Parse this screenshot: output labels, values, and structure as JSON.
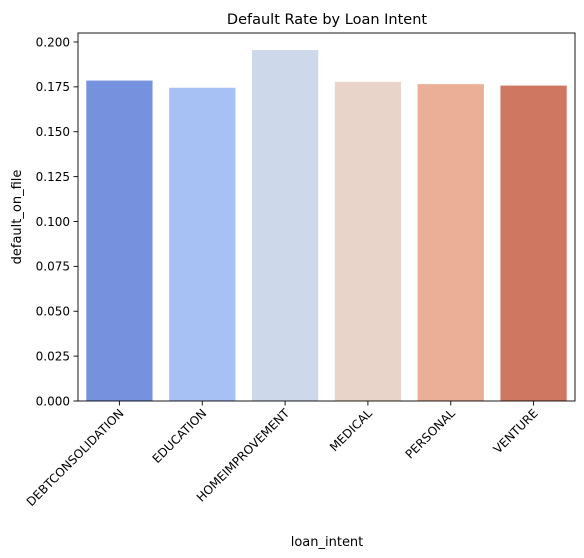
{
  "chart_data": {
    "type": "bar",
    "title": "Default Rate by Loan Intent",
    "xlabel": "loan_intent",
    "ylabel": "default_on_file",
    "categories": [
      "DEBTCONSOLIDATION",
      "EDUCATION",
      "HOMEIMPROVEMENT",
      "MEDICAL",
      "PERSONAL",
      "VENTURE"
    ],
    "values": [
      0.1785,
      0.1745,
      0.1955,
      0.1778,
      0.1765,
      0.1757
    ],
    "colors": [
      "#7692de",
      "#a8c1f5",
      "#cdd8eb",
      "#e8d4c9",
      "#ebae96",
      "#d07762"
    ],
    "ylim": [
      0,
      0.205
    ],
    "yticks": [
      "0.000",
      "0.025",
      "0.050",
      "0.075",
      "0.100",
      "0.125",
      "0.150",
      "0.175",
      "0.200"
    ],
    "grid": false
  }
}
